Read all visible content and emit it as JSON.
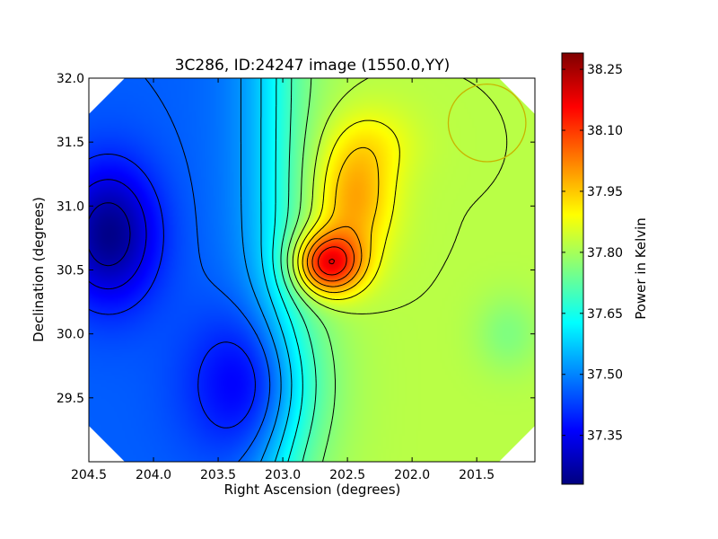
{
  "chart_data": {
    "type": "heatmap",
    "title": "3C286, ID:24247 image (1550.0,YY)",
    "xlabel": "Right Ascension (degrees)",
    "ylabel": "Declination (degrees)",
    "xlim": [
      204.5,
      201.05
    ],
    "ylim": [
      29.0,
      32.0
    ],
    "xticks": [
      204.5,
      204.0,
      203.5,
      203.0,
      202.5,
      202.0,
      201.5
    ],
    "xtick_labels": [
      "204.5",
      "204.0",
      "203.5",
      "203.0",
      "202.5",
      "202.0",
      "201.5"
    ],
    "yticks": [
      29.5,
      30.0,
      30.5,
      31.0,
      31.5,
      32.0
    ],
    "ytick_labels": [
      "29.5",
      "30.0",
      "30.5",
      "31.0",
      "31.5",
      "32.0"
    ],
    "colorbar": {
      "label": "Power in Kelvin",
      "range": [
        37.23,
        38.29
      ],
      "ticks": [
        37.35,
        37.5,
        37.65,
        37.8,
        37.95,
        38.1,
        38.25
      ],
      "tick_labels": [
        "37.35",
        "37.50",
        "37.65",
        "37.80",
        "37.95",
        "38.10",
        "38.25"
      ],
      "colormap": "jet"
    },
    "peak": {
      "ra": 202.65,
      "dec": 30.55,
      "value": 38.28
    },
    "minimum": {
      "ra": 204.35,
      "dec": 30.78,
      "value": 37.23
    },
    "beam_circle": {
      "ra": 201.42,
      "dec": 31.65,
      "radius_deg": 0.3,
      "color": "#c8b400"
    },
    "contours": true,
    "grid": false
  }
}
